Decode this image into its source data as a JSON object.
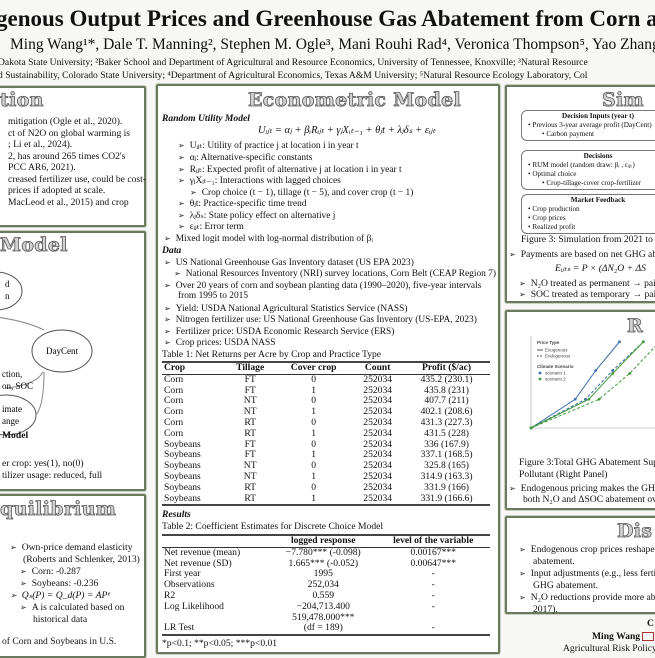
{
  "header": {
    "title": "genous Output Prices and Greenhouse Gas Abatement from Corn an",
    "authors": "Ming Wang¹*, Dale T. Manning², Stephen M. Ogle³, Mani Rouhi Rad⁴, Veronica Thompson⁵, Yao Zhang⁵",
    "affil1": "Dakota State University; ²Baker School and Department of Agricultural and Resource Economics, University of Tennessee, Knoxville; ³Natural Resource",
    "affil2": "d Sustainability, Colorado State University; ⁴Department of Agricultural Economics, Texas A&M University; ⁵Natural Resource Ecology Laboratory, Col"
  },
  "intro": {
    "title": "tion",
    "lines": [
      "mitigation (Ogle et al., 2020).",
      "ct of N2O on global warming is",
      "; Li et al., 2024).",
      "2, has around 265 times CO2's",
      "PCC AR6, 2021).",
      "creased fertilizer use, could be cost-",
      "prices if adopted at scale.",
      "MacLeod et al., 2015) and crop"
    ]
  },
  "model": {
    "title": "Model",
    "node_top": [
      "d",
      "n"
    ],
    "node_daycent": "DayCent",
    "edge_label": [
      "ction,",
      "on, SOC"
    ],
    "node_climate": [
      "imate",
      "ange"
    ],
    "caption": "Model",
    "lines": [
      "er crop: yes(1), no(0)",
      "tilizer usage: reduced, full"
    ]
  },
  "equilibrium": {
    "title": "quilibrium",
    "items": [
      "Own-price demand elasticity",
      "(Roberts and Schlenker, 2013)",
      "Corn: -0.287",
      "Soybeans: -0.236",
      "Qₛ(P) = Q_d(P) = APᵉ",
      "A is calculated based on",
      "historical data"
    ],
    "footer": "of Corn and Soybeans in U.S."
  },
  "econ": {
    "title": "Econometric Model",
    "rum_heading": "Random Utility Model",
    "equation": "Uᵢⱼₜ = αⱼ + βᵢRᵢⱼₜ + γⱼXᵢₜ₋₁ + θⱼt + λⱼδₛ + εᵢⱼₜ",
    "terms": [
      "Uᵢⱼₜ: Utility of practice j at location i in year t",
      "αⱼ: Alternative-specific constants",
      "Rᵢⱼₜ: Expected profit of alternative j at location i in year t",
      "γⱼXᵢₜ₋₁: Interactions with lagged choices",
      "Crop choice (t − 1), tillage (t − 5), and cover crop (t − 1)",
      "θⱼt: Practice-specific time trend",
      "λⱼδₛ: State policy effect on alternative j",
      "εᵢⱼₜ: Error term",
      "Mixed logit model with log-normal distribution of βᵢ"
    ],
    "data_heading": "Data",
    "data": [
      "US National Greenhouse Gas Inventory dataset (US EPA 2023)",
      "National Resources Inventory (NRI) survey locations, Corn Belt (CEAP Region 7)",
      "Over 20 years of corn and soybean planting data (1990–2020), five-year intervals",
      "from 1995 to 2015",
      "Yield: USDA National Agricultural Statistics Service (NASS)",
      "Nitrogen fertilizer use: US National Greenhouse Gas Inventory (US-EPA, 2023)",
      "Fertilizer price: USDA Economic Research Service (ERS)",
      "Crop prices: USDA NASS"
    ],
    "table1": {
      "caption": "Table 1: Net Returns per Acre by Crop and Practice Type",
      "headers": [
        "Crop",
        "Tillage",
        "Cover crop",
        "Count",
        "Profit ($/ac)"
      ],
      "rows": [
        [
          "Corn",
          "FT",
          "0",
          "252034",
          "435.2 (230.1)"
        ],
        [
          "Corn",
          "FT",
          "1",
          "252034",
          "435.8 (231)"
        ],
        [
          "Corn",
          "NT",
          "0",
          "252034",
          "407.7 (211)"
        ],
        [
          "Corn",
          "NT",
          "1",
          "252034",
          "402.1 (208.6)"
        ],
        [
          "Corn",
          "RT",
          "0",
          "252034",
          "431.3 (227.3)"
        ],
        [
          "Corn",
          "RT",
          "1",
          "252034",
          "431.5 (228)"
        ],
        [
          "Soybeans",
          "FT",
          "0",
          "252034",
          "336 (167.9)"
        ],
        [
          "Soybeans",
          "FT",
          "1",
          "252034",
          "337.1 (168.5)"
        ],
        [
          "Soybeans",
          "NT",
          "0",
          "252034",
          "325.8 (165)"
        ],
        [
          "Soybeans",
          "NT",
          "1",
          "252034",
          "314.9 (163.3)"
        ],
        [
          "Soybeans",
          "RT",
          "0",
          "252034",
          "331.9 (166)"
        ],
        [
          "Soybeans",
          "RT",
          "1",
          "252034",
          "331.9 (166.6)"
        ]
      ]
    },
    "results_heading": "Results",
    "table2": {
      "caption": "Table 2: Coefficient Estimates for Discrete Choice Model",
      "headers": [
        "",
        "logged response",
        "level of the variable"
      ],
      "rows": [
        [
          "Net revenue (mean)",
          "−7.780*** (-0.098)",
          "0.00167***"
        ],
        [
          "Net revenue (SD)",
          "1.665*** (-0.052)",
          "0.00647***"
        ],
        [
          "First year",
          "1995",
          "-"
        ],
        [
          "Observations",
          "252,034",
          "-"
        ],
        [
          "R2",
          "0.559",
          "-"
        ],
        [
          "Log Likelihood",
          "−204,713.400",
          "-"
        ],
        [
          "",
          "519,478.000***",
          ""
        ],
        [
          "LR Test",
          "(df = 189)",
          "-"
        ]
      ],
      "footnote": "*p<0.1; **p<0.05; ***p<0.01"
    }
  },
  "simulation": {
    "title": "Sim",
    "box1": {
      "title": "Decision Inputs (year t)",
      "items": [
        "Previous 3-year average profit (DayCent)",
        "Carbon payment"
      ]
    },
    "box2": {
      "title": "Decisions",
      "items": [
        "RUM model (random draw: βᵢ , εᵢⱼₜ)",
        "Optimal choice",
        "Crop-tillage-cover crop-fertilizer"
      ]
    },
    "box3": {
      "title": "Market Feedback",
      "items": [
        "Crop production",
        "Crop prices",
        "Realized profit"
      ]
    },
    "caption": "Figure 3: Simulation from 2021 to 20",
    "bullet1": "Payments are based on net GHG aba",
    "equation": "Eᵢⱼₜₛ = P × (ΔN₂O + ΔS",
    "bullet2": "N₂O treated as permanent → paid",
    "bullet3": "SOC treated as temporary → paid"
  },
  "results": {
    "title": "R",
    "caption1": "Figure 3:Total GHG Abatement Supp",
    "caption2": "Pollutant (Right Panel)",
    "bullet1": "Endogenous pricing makes the GHG",
    "bullet1b": "both N₂O and ΔSOC abatement over",
    "chart_data": {
      "type": "line",
      "legend_title_1": "Price Type",
      "legend_price": [
        "Exogenous",
        "Endogenous"
      ],
      "legend_title_2": "Climate Scenario",
      "legend_climate": [
        "scenario 1",
        "scenario 2"
      ],
      "colors": [
        "#3d6ea8",
        "#3f9a3a"
      ],
      "series": [
        {
          "name": "Exogenous scenario 1",
          "color": "#3d6ea8",
          "dash": false,
          "points": [
            [
              0,
              0
            ],
            [
              1.3,
              1
            ],
            [
              1.9,
              2
            ],
            [
              2.6,
              3
            ]
          ]
        },
        {
          "name": "Endogenous scenario 1",
          "color": "#3d6ea8",
          "dash": true,
          "points": [
            [
              0,
              0
            ],
            [
              1.6,
              1
            ],
            [
              2.4,
              2
            ],
            [
              3.3,
              3
            ]
          ]
        },
        {
          "name": "Exogenous scenario 2",
          "color": "#3f9a3a",
          "dash": false,
          "points": [
            [
              0,
              0
            ],
            [
              1.7,
              1
            ],
            [
              2.4,
              1.9
            ],
            [
              3.3,
              3
            ]
          ]
        },
        {
          "name": "Endogenous scenario 2",
          "color": "#3f9a3a",
          "dash": true,
          "points": [
            [
              0,
              0
            ],
            [
              2.0,
              1
            ],
            [
              2.9,
              1.9
            ],
            [
              3.7,
              2.9
            ]
          ]
        }
      ],
      "xlim": [
        0,
        3.7
      ],
      "ylim": [
        0,
        3.2
      ]
    }
  },
  "discussion": {
    "title": "Dis",
    "items": [
      "Endogenous crop prices reshape ad",
      "abatement.",
      "Input adjustments (e.g., less fertiliz",
      "GHG abatement.",
      "N₂O reductions provide more abate",
      "2017)."
    ]
  },
  "contact": {
    "heading": "C",
    "name": "Ming Wang",
    "org": "Agricultural Risk Policy Cen"
  }
}
